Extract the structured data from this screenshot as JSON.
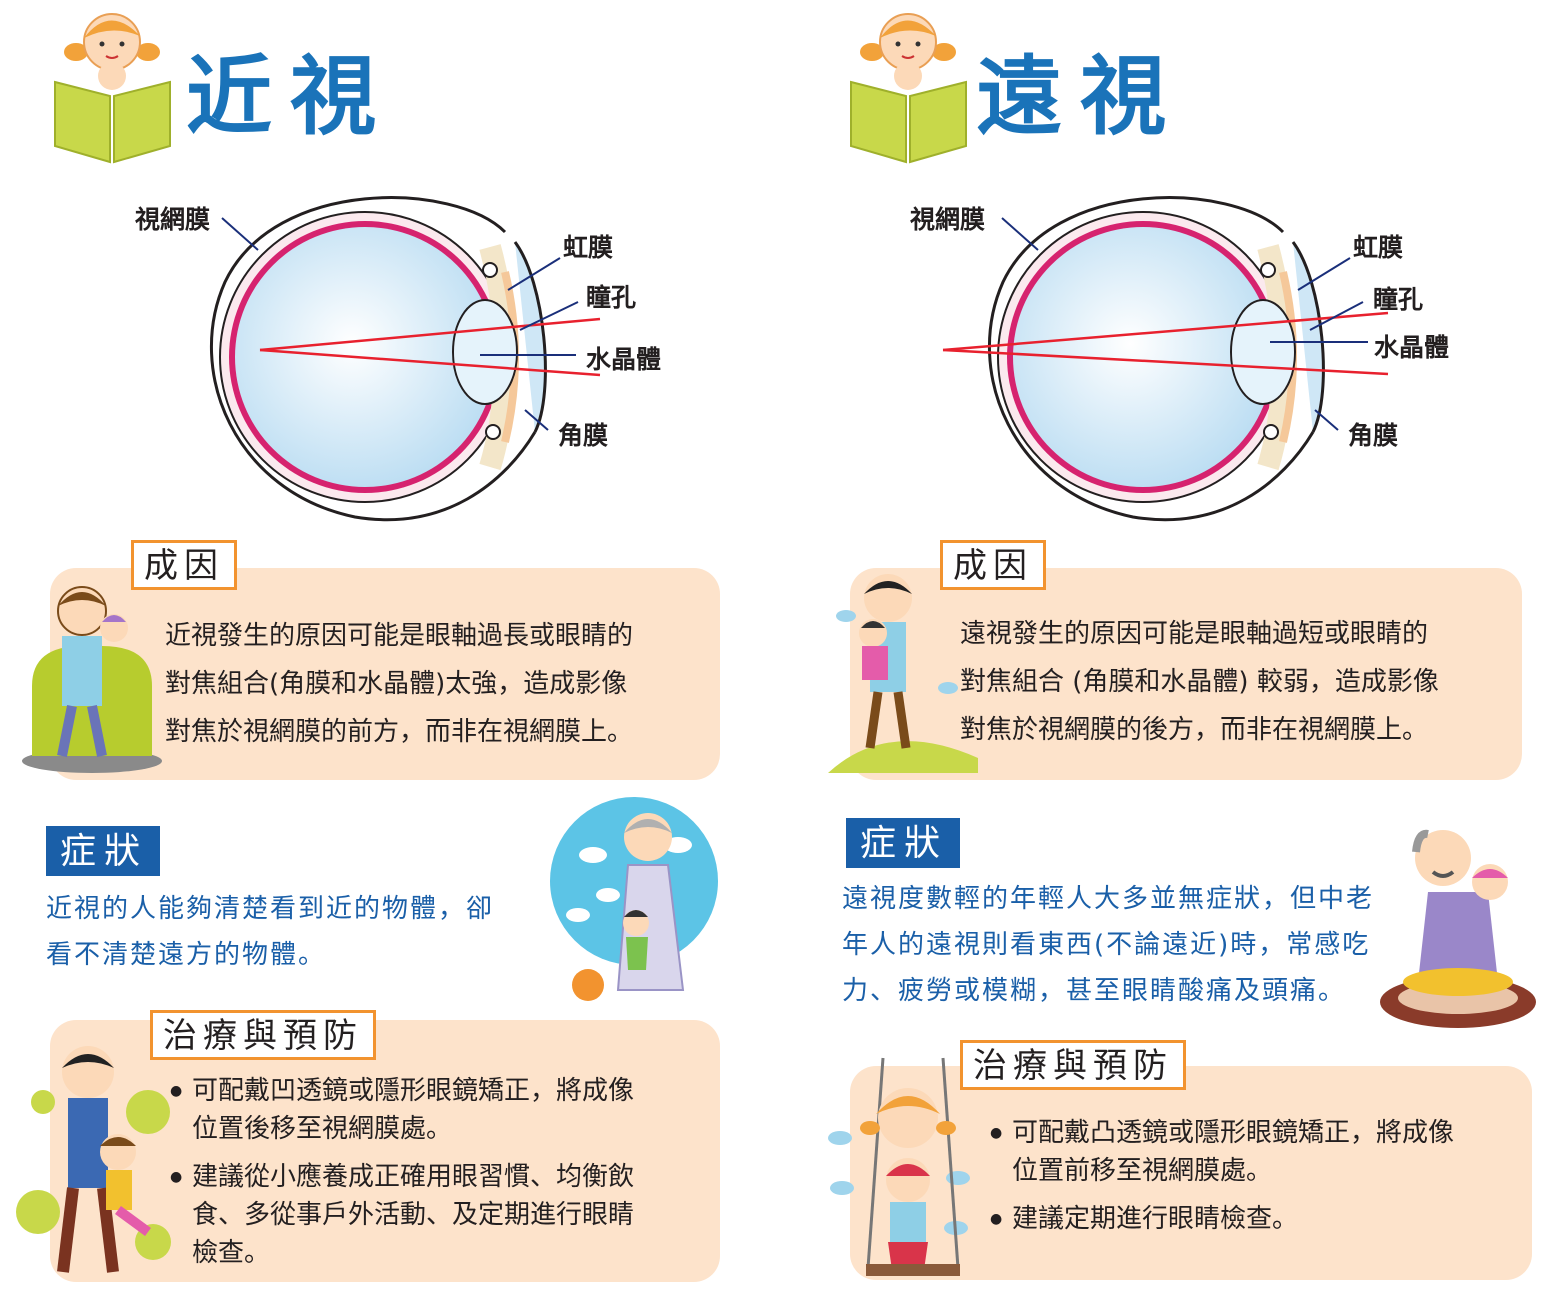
{
  "myopia": {
    "title": "近視",
    "labels": {
      "retina": "視網膜",
      "iris": "虹膜",
      "pupil": "瞳孔",
      "lens": "水晶體",
      "cornea": "角膜"
    },
    "cause": {
      "heading": "成因",
      "lines": [
        "近視發生的原因可能是眼軸過長或眼睛的",
        "對焦組合(角膜和水晶體)太強，造成影像",
        "對焦於視網膜的前方，而非在視網膜上。"
      ]
    },
    "symptoms": {
      "heading": "症狀",
      "lines": [
        "近視的人能夠清楚看到近的物體，卻",
        "看不清楚遠方的物體。"
      ]
    },
    "treatment": {
      "heading": "治療與預防",
      "bullets": [
        [
          "可配戴凹透鏡或隱形眼鏡矯正，將成像",
          "位置後移至視網膜處。"
        ],
        [
          "建議從小應養成正確用眼習慣、均衡飲",
          "食、多從事戶外活動、及定期進行眼睛",
          "檢查。"
        ]
      ]
    }
  },
  "hyperopia": {
    "title": "遠視",
    "labels": {
      "retina": "視網膜",
      "iris": "虹膜",
      "pupil": "瞳孔",
      "lens": "水晶體",
      "cornea": "角膜"
    },
    "cause": {
      "heading": "成因",
      "lines": [
        "遠視發生的原因可能是眼軸過短或眼睛的",
        "對焦組合 (角膜和水晶體) 較弱，造成影像",
        "對焦於視網膜的後方，而非在視網膜上。"
      ]
    },
    "symptoms": {
      "heading": "症狀",
      "lines": [
        "遠視度數輕的年輕人大多並無症狀，但中老",
        "年人的遠視則看東西(不論遠近)時，常感吃",
        "力、疲勞或模糊，甚至眼睛酸痛及頭痛。"
      ]
    },
    "treatment": {
      "heading": "治療與預防",
      "bullets": [
        [
          "可配戴凸透鏡或隱形眼鏡矯正，將成像",
          "位置前移至視網膜處。"
        ],
        [
          "建議定期進行眼睛檢查。"
        ]
      ]
    }
  },
  "colors": {
    "title_blue": "#1a73b9",
    "heading_blue": "#1a5fa8",
    "peach": "#fde3cb",
    "orange": "#f2932f",
    "ray_red": "#e8212e",
    "retina_pink": "#d6236f",
    "book_green": "#c8d84a"
  }
}
